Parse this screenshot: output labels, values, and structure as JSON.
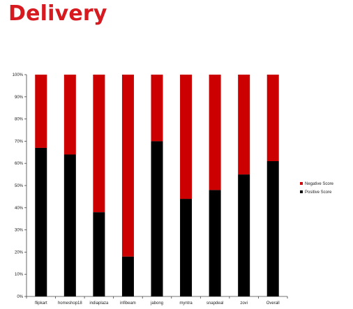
{
  "slide": {
    "title": "Delivery"
  },
  "colors": {
    "title": "#d71920",
    "negative": "#cc0000",
    "positive": "#000000"
  },
  "chart_data": {
    "type": "bar",
    "stacked": true,
    "percent_stacked": true,
    "categories": [
      "flipkart",
      "homeshop18",
      "indiaplaza",
      "infibeam",
      "jabong",
      "myntra",
      "snapdeal",
      "zovi",
      "Overall"
    ],
    "series": [
      {
        "name": "Positive Score",
        "color": "#000000",
        "values": [
          67,
          64,
          38,
          18,
          70,
          44,
          48,
          55,
          61
        ]
      },
      {
        "name": "Negative Score",
        "color": "#cc0000",
        "values": [
          33,
          36,
          62,
          82,
          30,
          56,
          52,
          45,
          39
        ]
      }
    ],
    "ylim": [
      0,
      100
    ],
    "yticks": [
      "0%",
      "10%",
      "20%",
      "30%",
      "40%",
      "50%",
      "60%",
      "70%",
      "80%",
      "90%",
      "100%"
    ],
    "legend": [
      "Negative Score",
      "Positive Score"
    ],
    "legend_position": "right",
    "grid": false
  }
}
